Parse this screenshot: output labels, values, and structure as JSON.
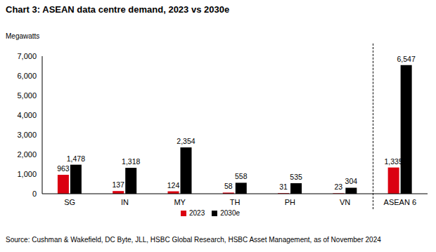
{
  "chart_data": {
    "type": "bar",
    "title": "Chart 3: ASEAN data centre demand, 2023 vs 2030e",
    "y_label": "Megawatts",
    "source": "Source: Cushman & Wakefield, DC Byte, JLL, HSBC Global Research, HSBC Asset Management, as of November 2024",
    "categories": [
      "SG",
      "IN",
      "MY",
      "TH",
      "PH",
      "VN",
      "ASEAN 6"
    ],
    "series": [
      {
        "name": "2023",
        "color": "#db0011",
        "values": [
          963,
          137,
          124,
          58,
          31,
          23,
          1335
        ],
        "value_labels": [
          "963",
          "137",
          "124",
          "58",
          "31",
          "23",
          "1,335"
        ]
      },
      {
        "name": "2030e",
        "color": "#000000",
        "values": [
          1478,
          1318,
          2354,
          558,
          535,
          304,
          6547
        ],
        "value_labels": [
          "1,478",
          "1,318",
          "2,354",
          "558",
          "535",
          "304",
          "6,547"
        ]
      }
    ],
    "ylim": [
      0,
      7000
    ],
    "yticks": [
      0,
      {
        "value": 1000,
        "label": "1,000"
      },
      {
        "value": 2000,
        "label": "2,000"
      },
      {
        "value": 3000,
        "label": "3,000"
      },
      {
        "value": 4000,
        "label": "4,000"
      },
      {
        "value": 5000,
        "label": "5,000"
      },
      {
        "value": 6000,
        "label": "6,000"
      },
      {
        "value": 7000,
        "label": "7,000"
      }
    ],
    "grid": false,
    "legend": "bottom",
    "data_labels": true
  }
}
